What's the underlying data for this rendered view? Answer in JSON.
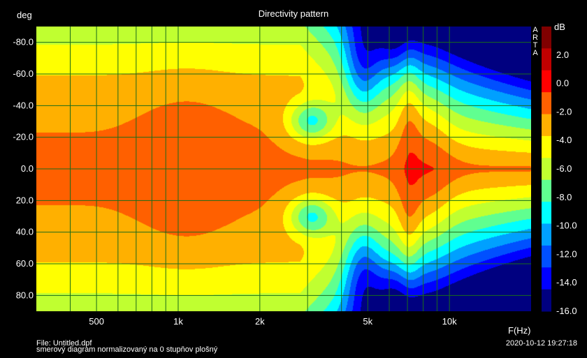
{
  "chart_data": {
    "type": "heatmap",
    "title": "Directivity pattern",
    "ylabel": "deg",
    "xlabel": "F(Hz)",
    "x_scale": "log",
    "xlim": [
      300,
      20000
    ],
    "ylim": [
      -90,
      90
    ],
    "y_inverted": true,
    "x_ticks": [
      {
        "v": 500,
        "label": "500"
      },
      {
        "v": 1000,
        "label": "1k"
      },
      {
        "v": 2000,
        "label": "2k"
      },
      {
        "v": 5000,
        "label": "5k"
      },
      {
        "v": 10000,
        "label": "10k"
      }
    ],
    "x_minor_ticks": [
      300,
      400,
      600,
      700,
      800,
      900,
      3000,
      4000,
      6000,
      7000,
      8000,
      9000,
      20000
    ],
    "y_ticks": [
      -80,
      -60,
      -40,
      -20,
      0,
      20,
      40,
      60,
      80
    ],
    "y_tick_labels": [
      "-80.0",
      "-60.0",
      "-40.0",
      "-20.0",
      "0.0",
      "20.0",
      "40.0",
      "60.0",
      "80.0"
    ],
    "colorbar": {
      "unit": "dB",
      "min": -16,
      "max": 4,
      "ticks": [
        2,
        0,
        -2,
        -4,
        -6,
        -8,
        -10,
        -12,
        -14,
        -16
      ],
      "tick_labels": [
        "2.0",
        "0.0",
        "-2.0",
        "-4.0",
        "-6.0",
        "-8.0",
        "-10.0",
        "-12.0",
        "-14.0",
        "-16.0"
      ],
      "colors": [
        "#000080",
        "#0000ff",
        "#0050ff",
        "#00a0ff",
        "#00ffff",
        "#60ff90",
        "#c0ff30",
        "#ffff00",
        "#ffb000",
        "#ff6000",
        "#ff0000",
        "#c00000",
        "#800000"
      ]
    },
    "grid": true,
    "brand": "ARTA"
  },
  "footer": {
    "file": "File: Untitled.dpf",
    "description": "smerový diagram normalizovaný na 0 stupňov plošný",
    "timestamp": "2020-10-12  19:27:18"
  },
  "colors": {
    "background": "#000000",
    "grid": "#1a6b1a"
  }
}
